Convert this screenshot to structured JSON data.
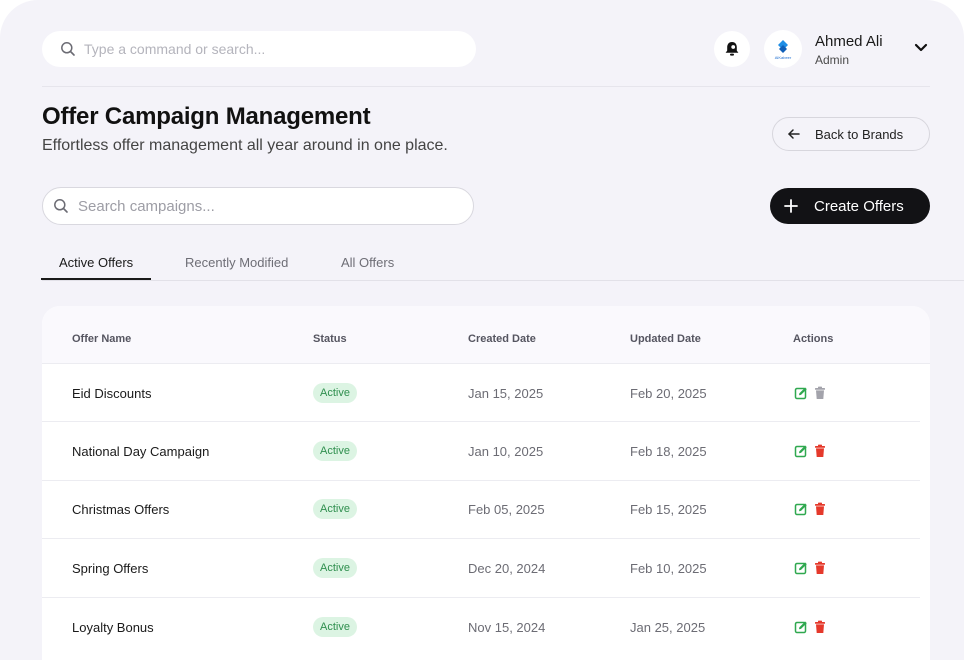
{
  "topbar": {
    "command_placeholder": "Type a command or search...",
    "user_name": "Ahmed Ali",
    "user_role": "Admin",
    "brand_logo_text": "AlKabeer"
  },
  "header": {
    "title": "Offer Campaign Management",
    "subtitle": "Effortless offer management all year around in one place.",
    "back_label": "Back to Brands",
    "create_label": "Create Offers",
    "search_placeholder": "Search campaigns..."
  },
  "tabs": [
    {
      "label": "Active Offers",
      "active": true
    },
    {
      "label": "Recently Modified",
      "active": false
    },
    {
      "label": "All Offers",
      "active": false
    }
  ],
  "table": {
    "columns": [
      "Offer Name",
      "Status",
      "Created Date",
      "Updated Date",
      "Actions"
    ],
    "rows": [
      {
        "name": "Eid Discounts",
        "status": "Active",
        "created": "Jan 15, 2025",
        "updated": "Feb 20, 2025"
      },
      {
        "name": "National Day Campaign",
        "status": "Active",
        "created": "Jan 10, 2025",
        "updated": "Feb 18, 2025"
      },
      {
        "name": "Christmas Offers",
        "status": "Active",
        "created": "Feb 05, 2025",
        "updated": "Feb 15, 2025"
      },
      {
        "name": "Spring Offers",
        "status": "Active",
        "created": "Dec 20, 2024",
        "updated": "Feb 10, 2025"
      },
      {
        "name": "Loyalty Bonus",
        "status": "Active",
        "created": "Nov 15, 2024",
        "updated": "Jan 25, 2025"
      }
    ]
  },
  "icons": {
    "search": "search-icon",
    "bell": "bell-icon",
    "chevron": "chevron-down-icon",
    "back": "arrow-left-icon",
    "plus": "plus-icon",
    "edit": "edit-icon",
    "delete": "trash-icon"
  },
  "colors": {
    "background": "#f4f3f9",
    "primary_button": "#121215",
    "badge_bg": "#dcf4e3",
    "badge_text": "#2f8f4e",
    "edit_icon": "#2fa84f",
    "delete_icon": "#e5392b",
    "delete_icon_muted": "#a3a3ab"
  }
}
